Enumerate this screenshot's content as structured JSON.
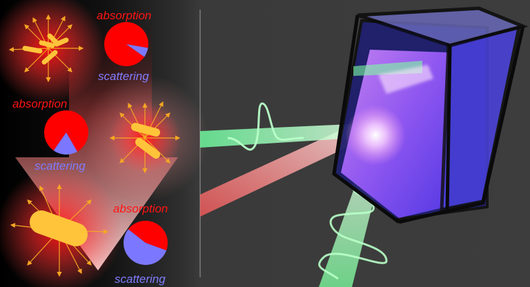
{
  "labels": {
    "absorption": "absorption",
    "scattering": "scattering"
  },
  "panels": [
    {
      "absorption_fraction": 0.93,
      "scattering_fraction": 0.07
    },
    {
      "absorption_fraction": 0.82,
      "scattering_fraction": 0.18
    },
    {
      "absorption_fraction": 0.45,
      "scattering_fraction": 0.55
    }
  ],
  "colors": {
    "absorption": "#ff0000",
    "scattering": "#7b78ff",
    "particle": "#ffc43a",
    "glow": "#ff1a1a",
    "arrow_ray": "#f5a623",
    "beam_green": "#8cffb0",
    "beam_red": "#ff8a8a",
    "cuvette_liquid": "#6a4dff",
    "divider": "#9a9a9a"
  }
}
